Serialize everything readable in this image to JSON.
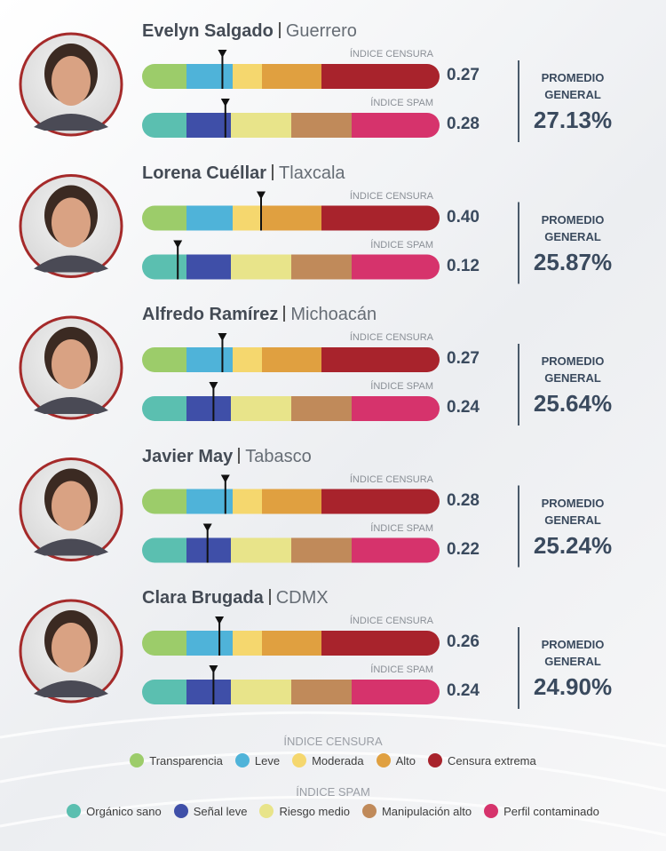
{
  "profiles": [
    {
      "name": "Evelyn Salgado",
      "state": "Guerrero",
      "censura": {
        "label": "ÍNDICE CENSURA",
        "value": {
          "value": 0.27,
          "label": "0.27"
        }
      },
      "spam": {
        "label": "ÍNDICE SPAM",
        "value": {
          "value": 0.28,
          "label": "0.28"
        }
      },
      "promedio_label": "PROMEDIO GENERAL",
      "promedio": "27.13%"
    },
    {
      "name": "Lorena Cuéllar",
      "state": "Tlaxcala",
      "censura": {
        "label": "ÍNDICE CENSURA",
        "value": {
          "value": 0.4,
          "label": "0.40"
        }
      },
      "spam": {
        "label": "ÍNDICE SPAM",
        "value": {
          "value": 0.12,
          "label": "0.12"
        }
      },
      "promedio_label": "PROMEDIO GENERAL",
      "promedio": "25.87%"
    },
    {
      "name": "Alfredo Ramírez",
      "state": "Michoacán",
      "censura": {
        "label": "ÍNDICE CENSURA",
        "value": {
          "value": 0.27,
          "label": "0.27"
        }
      },
      "spam": {
        "label": "ÍNDICE SPAM",
        "value": {
          "value": 0.24,
          "label": "0.24"
        }
      },
      "promedio_label": "PROMEDIO GENERAL",
      "promedio": "25.64%"
    },
    {
      "name": "Javier May",
      "state": "Tabasco",
      "censura": {
        "label": "ÍNDICE CENSURA",
        "value": {
          "value": 0.28,
          "label": "0.28"
        }
      },
      "spam": {
        "label": "ÍNDICE SPAM",
        "value": {
          "value": 0.22,
          "label": "0.22"
        }
      },
      "promedio_label": "PROMEDIO GENERAL",
      "promedio": "25.24%"
    },
    {
      "name": "Clara Brugada",
      "state": "CDMX",
      "censura": {
        "label": "ÍNDICE CENSURA",
        "value": {
          "value": 0.26,
          "label": "0.26"
        }
      },
      "spam": {
        "label": "ÍNDICE SPAM",
        "value": {
          "value": 0.24,
          "label": "0.24"
        }
      },
      "promedio_label": "PROMEDIO GENERAL",
      "promedio": "24.90%"
    }
  ],
  "legend": {
    "censura": {
      "title": "ÍNDICE CENSURA",
      "items": [
        {
          "label": "Transparencia",
          "color": "#9ccc6a"
        },
        {
          "label": "Leve",
          "color": "#4fb3d9"
        },
        {
          "label": "Moderada",
          "color": "#f5d76e"
        },
        {
          "label": "Alto",
          "color": "#e0a040"
        },
        {
          "label": "Censura extrema",
          "color": "#a8232c"
        }
      ]
    },
    "spam": {
      "title": "ÍNDICE SPAM",
      "items": [
        {
          "label": "Orgánico sano",
          "color": "#5bbfb0"
        },
        {
          "label": "Señal leve",
          "color": "#3f4fa8"
        },
        {
          "label": "Riesgo medio",
          "color": "#e8e48a"
        },
        {
          "label": "Manipulación alto",
          "color": "#c08a5a"
        },
        {
          "label": "Perfil contaminado",
          "color": "#d6336c"
        }
      ]
    }
  }
}
